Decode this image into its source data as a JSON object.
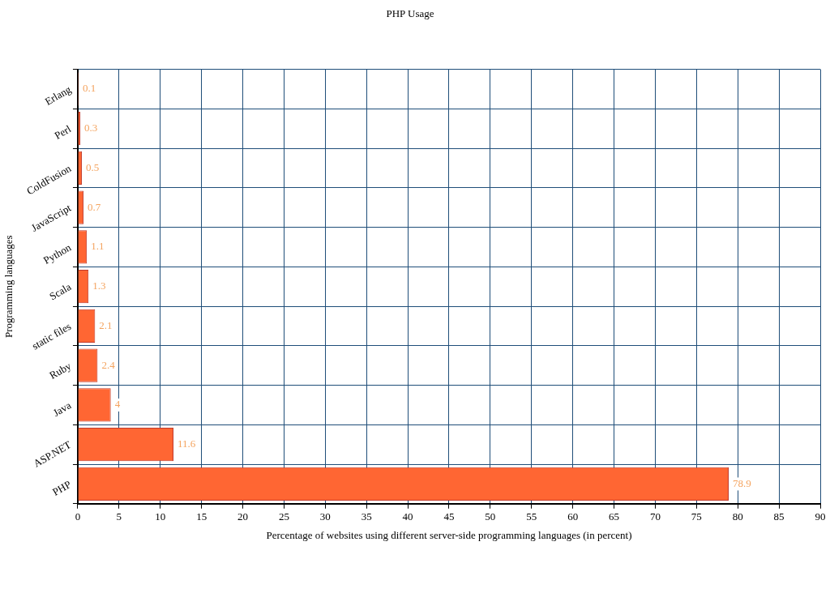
{
  "chart_data": {
    "type": "bar",
    "orientation": "horizontal",
    "title": "PHP Usage",
    "xlabel": "Percentage of websites using different server-side programming languages (in percent)",
    "ylabel": "Programming languages",
    "categories": [
      "Erlang",
      "Perl",
      "ColdFusion",
      "JavaScript",
      "Python",
      "Scala",
      "static files",
      "Ruby",
      "Java",
      "ASP.NET",
      "PHP"
    ],
    "values": [
      0.1,
      0.3,
      0.5,
      0.7,
      1.1,
      1.3,
      2.1,
      2.4,
      4,
      11.6,
      78.9
    ],
    "color": "#ff6633",
    "data_labels": true,
    "grid": true,
    "legend": false,
    "xlim": [
      0,
      90
    ],
    "xticks": [
      0,
      5,
      10,
      15,
      20,
      25,
      30,
      35,
      40,
      45,
      50,
      55,
      60,
      65,
      70,
      75,
      80,
      85,
      90
    ]
  }
}
